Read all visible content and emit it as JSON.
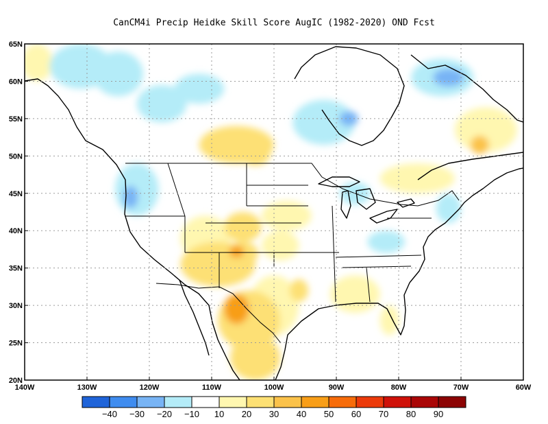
{
  "title": "CanCM4i Precip Heidke Skill Score AugIC (1982-2020) OND Fcst",
  "map": {
    "lon_range": [
      -140,
      -60
    ],
    "lat_range": [
      20,
      65
    ],
    "lat_ticks": [
      {
        "value": 65,
        "label": "65N"
      },
      {
        "value": 60,
        "label": "60N"
      },
      {
        "value": 55,
        "label": "55N"
      },
      {
        "value": 50,
        "label": "50N"
      },
      {
        "value": 45,
        "label": "45N"
      },
      {
        "value": 40,
        "label": "40N"
      },
      {
        "value": 35,
        "label": "35N"
      },
      {
        "value": 30,
        "label": "30N"
      },
      {
        "value": 25,
        "label": "25N"
      },
      {
        "value": 20,
        "label": "20N"
      }
    ],
    "lon_ticks": [
      {
        "value": -140,
        "label": "140W"
      },
      {
        "value": -130,
        "label": "130W"
      },
      {
        "value": -120,
        "label": "120W"
      },
      {
        "value": -110,
        "label": "110W"
      },
      {
        "value": -100,
        "label": "100W"
      },
      {
        "value": -90,
        "label": "90W"
      },
      {
        "value": -80,
        "label": "80W"
      },
      {
        "value": -70,
        "label": "70W"
      },
      {
        "value": -60,
        "label": "60W"
      }
    ],
    "gridlines": "dotted"
  },
  "colorbar": {
    "labels": [
      "-40",
      "-30",
      "-20",
      "-10",
      "10",
      "20",
      "30",
      "40",
      "50",
      "60",
      "70",
      "80",
      "90"
    ],
    "colors": [
      "#1f64d9",
      "#3f8cef",
      "#78b4f5",
      "#b4ecf8",
      "#ffffff",
      "#fff7b0",
      "#fde074",
      "#fbc24a",
      "#f89e18",
      "#f76c0a",
      "#ec3a0a",
      "#cf1109",
      "#aa0606",
      "#8c0404"
    ]
  },
  "features": {
    "skill_regions": [
      {
        "name": "alaska-coast",
        "lon": -138,
        "lat": 62.5,
        "score": 15,
        "rx": 2.5,
        "ry": 2.5
      },
      {
        "name": "yukon-west",
        "lon": -131,
        "lat": 62,
        "score": -15,
        "rx": 5,
        "ry": 3
      },
      {
        "name": "yukon-center",
        "lon": -125,
        "lat": 61,
        "score": -15,
        "rx": 4,
        "ry": 3
      },
      {
        "name": "nwt-south",
        "lon": -112,
        "lat": 59,
        "score": -12,
        "rx": 4,
        "ry": 2
      },
      {
        "name": "bc-north",
        "lon": -118,
        "lat": 57,
        "score": -15,
        "rx": 4,
        "ry": 2.5
      },
      {
        "name": "alberta",
        "lon": -106,
        "lat": 51.5,
        "score": 20,
        "rx": 6,
        "ry": 2.5
      },
      {
        "name": "saskatchewan",
        "lon": -103,
        "lat": 50.5,
        "score": 22,
        "rx": 2.5,
        "ry": 1.8
      },
      {
        "name": "manitoba",
        "lon": -92,
        "lat": 54.5,
        "score": -15,
        "rx": 5,
        "ry": 3
      },
      {
        "name": "hudson-south",
        "lon": -88,
        "lat": 55,
        "score": -22,
        "rx": 1.5,
        "ry": 1
      },
      {
        "name": "quebec-north",
        "lon": -73,
        "lat": 60.5,
        "score": -15,
        "rx": 5,
        "ry": 2.5
      },
      {
        "name": "ungava",
        "lon": -72,
        "lat": 60.5,
        "score": -25,
        "rx": 2.5,
        "ry": 1.2
      },
      {
        "name": "labrador",
        "lon": -66,
        "lat": 53.5,
        "score": 15,
        "rx": 5,
        "ry": 3
      },
      {
        "name": "labrador-core",
        "lon": -67,
        "lat": 51.5,
        "score": 35,
        "rx": 1.5,
        "ry": 1.2
      },
      {
        "name": "quebec-south",
        "lon": -77,
        "lat": 47,
        "score": 15,
        "rx": 6,
        "ry": 2
      },
      {
        "name": "pacific-nw",
        "lon": -122,
        "lat": 45.5,
        "score": -18,
        "rx": 3.5,
        "ry": 3.5
      },
      {
        "name": "pacific-nw-core",
        "lon": -123,
        "lat": 44.5,
        "score": -28,
        "rx": 1.2,
        "ry": 1.5
      },
      {
        "name": "utah",
        "lon": -111,
        "lat": 39,
        "score": 15,
        "rx": 4,
        "ry": 3
      },
      {
        "name": "colorado",
        "lon": -105,
        "lat": 40.5,
        "score": 22,
        "rx": 3,
        "ry": 2
      },
      {
        "name": "southwest",
        "lon": -109,
        "lat": 35.5,
        "score": 20,
        "rx": 6,
        "ry": 3
      },
      {
        "name": "new-mexico",
        "lon": -105,
        "lat": 37,
        "score": 28,
        "rx": 2.5,
        "ry": 1.5
      },
      {
        "name": "new-mexico-core",
        "lon": -106,
        "lat": 37.2,
        "score": 40,
        "rx": 1.2,
        "ry": 0.8
      },
      {
        "name": "kansas",
        "lon": -99,
        "lat": 38,
        "score": 15,
        "rx": 3,
        "ry": 2
      },
      {
        "name": "nebraska",
        "lon": -98,
        "lat": 42,
        "score": 15,
        "rx": 4,
        "ry": 2
      },
      {
        "name": "texas",
        "lon": -100,
        "lat": 30,
        "score": 18,
        "rx": 4,
        "ry": 4
      },
      {
        "name": "texas-east",
        "lon": -96,
        "lat": 32,
        "score": 25,
        "rx": 1.5,
        "ry": 1.5
      },
      {
        "name": "mexico-north",
        "lon": -104,
        "lat": 28,
        "score": 22,
        "rx": 5,
        "ry": 4
      },
      {
        "name": "chihuahua",
        "lon": -106,
        "lat": 29.5,
        "score": 40,
        "rx": 2,
        "ry": 2
      },
      {
        "name": "mexico-south",
        "lon": -103,
        "lat": 23,
        "score": 22,
        "rx": 4,
        "ry": 3
      },
      {
        "name": "gulf-coast",
        "lon": -87,
        "lat": 31.5,
        "score": 18,
        "rx": 4,
        "ry": 2.5
      },
      {
        "name": "florida",
        "lon": -81.5,
        "lat": 28,
        "score": 15,
        "rx": 1.5,
        "ry": 2
      },
      {
        "name": "ohio-valley",
        "lon": -82,
        "lat": 38.5,
        "score": -15,
        "rx": 3,
        "ry": 1.5
      },
      {
        "name": "northeast",
        "lon": -72,
        "lat": 43,
        "score": -12,
        "rx": 2,
        "ry": 2
      },
      {
        "name": "great-lakes",
        "lon": -87,
        "lat": 45,
        "score": -12,
        "rx": 2.5,
        "ry": 1.5
      }
    ]
  }
}
